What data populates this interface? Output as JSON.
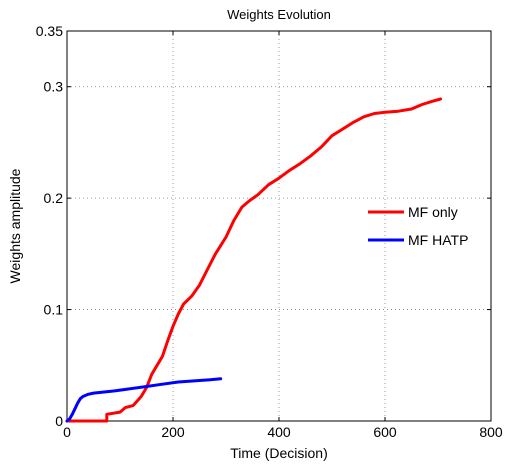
{
  "chart_data": {
    "type": "line",
    "title": "Weights Evolution",
    "xlabel": "Time (Decision)",
    "ylabel": "Weights amplitude",
    "xlim": [
      0,
      800
    ],
    "ylim": [
      0,
      0.35
    ],
    "xticks": [
      0,
      200,
      400,
      600,
      800
    ],
    "xtick_labels": [
      "0",
      "200",
      "400",
      "600",
      "800"
    ],
    "yticks": [
      0,
      0.1,
      0.2,
      0.3,
      0.35
    ],
    "ytick_labels": [
      "0",
      "0.1",
      "0.2",
      "0.3",
      "0.35"
    ],
    "grid": true,
    "legend_position": "right",
    "series": [
      {
        "name": "MF only",
        "color": "#ff0000",
        "x": [
          0,
          75,
          75,
          100,
          110,
          125,
          140,
          150,
          160,
          170,
          180,
          190,
          200,
          210,
          220,
          235,
          250,
          265,
          280,
          300,
          315,
          330,
          345,
          360,
          380,
          400,
          420,
          440,
          460,
          480,
          500,
          520,
          540,
          560,
          580,
          600,
          625,
          650,
          670,
          690,
          705
        ],
        "y": [
          0,
          0,
          0.006,
          0.008,
          0.012,
          0.014,
          0.022,
          0.03,
          0.042,
          0.05,
          0.058,
          0.072,
          0.085,
          0.096,
          0.105,
          0.112,
          0.122,
          0.136,
          0.15,
          0.165,
          0.18,
          0.192,
          0.198,
          0.203,
          0.212,
          0.218,
          0.225,
          0.231,
          0.238,
          0.246,
          0.256,
          0.262,
          0.268,
          0.273,
          0.276,
          0.277,
          0.278,
          0.28,
          0.284,
          0.287,
          0.289
        ]
      },
      {
        "name": "MF HATP",
        "color": "#0000ff",
        "x": [
          0,
          5,
          10,
          15,
          20,
          25,
          30,
          40,
          50,
          70,
          90,
          120,
          150,
          180,
          210,
          240,
          270,
          290
        ],
        "y": [
          0,
          0.002,
          0.006,
          0.011,
          0.016,
          0.02,
          0.022,
          0.024,
          0.025,
          0.026,
          0.027,
          0.029,
          0.031,
          0.033,
          0.035,
          0.036,
          0.037,
          0.038
        ]
      }
    ]
  }
}
